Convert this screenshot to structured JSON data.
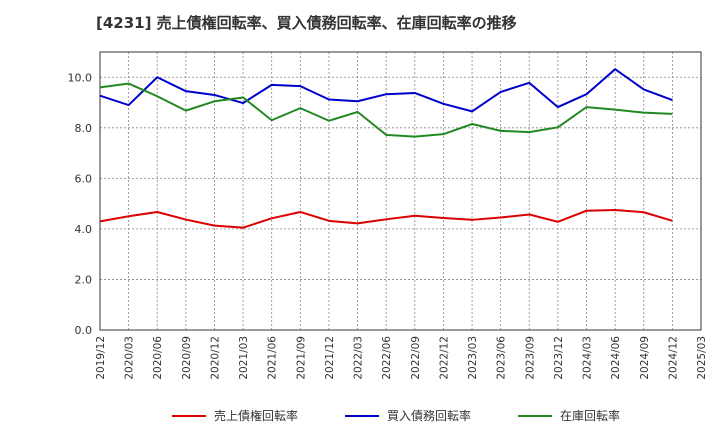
{
  "chart_data": {
    "type": "line",
    "title": "[4231]  売上債権回転率、買入債務回転率、在庫回転率の推移",
    "xlabel": "",
    "ylabel": "",
    "ylim": [
      0,
      11
    ],
    "yticks": [
      0,
      2,
      4,
      6,
      8,
      10
    ],
    "ytick_labels": [
      "0.0",
      "2.0",
      "4.0",
      "6.0",
      "8.0",
      "10.0"
    ],
    "grid": true,
    "legend_position": "bottom",
    "x_axis_labels": [
      "2019/12",
      "2020/03",
      "2020/06",
      "2020/09",
      "2020/12",
      "2021/03",
      "2021/06",
      "2021/09",
      "2021/12",
      "2022/03",
      "2022/06",
      "2022/09",
      "2022/12",
      "2023/03",
      "2023/06",
      "2023/09",
      "2023/12",
      "2024/03",
      "2024/06",
      "2024/09",
      "2024/12",
      "2025/03"
    ],
    "categories": [
      "2019/12",
      "2020/03",
      "2020/06",
      "2020/09",
      "2020/12",
      "2021/03",
      "2021/06",
      "2021/09",
      "2021/12",
      "2022/03",
      "2022/06",
      "2022/09",
      "2022/12",
      "2023/03",
      "2023/06",
      "2023/09",
      "2023/12",
      "2024/03",
      "2024/06",
      "2024/09",
      "2024/12"
    ],
    "series": [
      {
        "name": "売上債権回転率",
        "color": "#dd0000",
        "values": [
          4.3,
          4.5,
          4.67,
          4.37,
          4.13,
          4.05,
          4.42,
          4.67,
          4.32,
          4.22,
          4.38,
          4.52,
          4.43,
          4.36,
          4.45,
          4.57,
          4.28,
          4.72,
          4.75,
          4.66,
          4.32
        ]
      },
      {
        "name": "買入債務回転率",
        "color": "#0000cc",
        "values": [
          9.27,
          8.9,
          10.0,
          9.45,
          9.3,
          8.98,
          9.7,
          9.65,
          9.12,
          9.05,
          9.33,
          9.38,
          8.95,
          8.65,
          9.42,
          9.78,
          8.82,
          9.33,
          10.32,
          9.52,
          9.1
        ]
      },
      {
        "name": "在庫回転率",
        "color": "#228822",
        "values": [
          9.6,
          9.75,
          9.25,
          8.68,
          9.05,
          9.2,
          8.3,
          8.78,
          8.28,
          8.63,
          7.72,
          7.65,
          7.75,
          8.15,
          7.88,
          7.83,
          8.02,
          8.82,
          8.72,
          8.6,
          8.55
        ]
      }
    ]
  }
}
